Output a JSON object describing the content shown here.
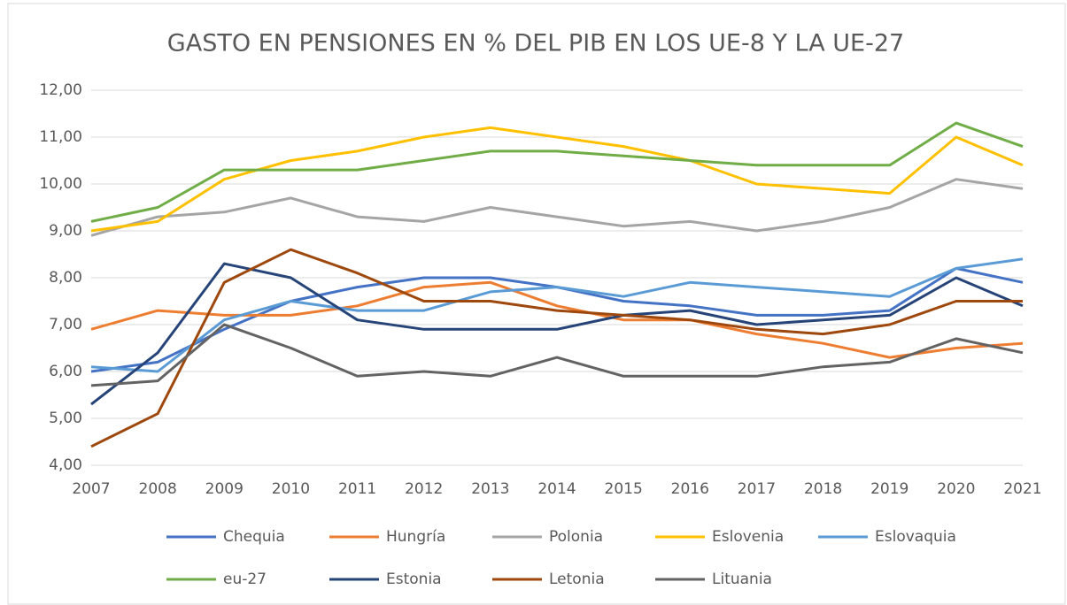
{
  "chart_data": {
    "type": "line",
    "title": "GASTO EN PENSIONES EN % DEL PIB EN LOS UE-8 Y LA UE-27",
    "categories": [
      "2007",
      "2008",
      "2009",
      "2010",
      "2011",
      "2012",
      "2013",
      "2014",
      "2015",
      "2016",
      "2017",
      "2018",
      "2019",
      "2020",
      "2021"
    ],
    "ylim": [
      4,
      12
    ],
    "yticks": [
      {
        "value": 4,
        "label": "4,00"
      },
      {
        "value": 5,
        "label": "5,00"
      },
      {
        "value": 6,
        "label": "6,00"
      },
      {
        "value": 7,
        "label": "7,00"
      },
      {
        "value": 8,
        "label": "8,00"
      },
      {
        "value": 9,
        "label": "9,00"
      },
      {
        "value": 10,
        "label": "10,00"
      },
      {
        "value": 11,
        "label": "11,00"
      },
      {
        "value": 12,
        "label": "12,00"
      }
    ],
    "grid": true,
    "legend": "bottom",
    "series": [
      {
        "name": "Chequia",
        "color": "#4472c4",
        "values": [
          6.0,
          6.2,
          6.9,
          7.5,
          7.8,
          8.0,
          8.0,
          7.8,
          7.5,
          7.4,
          7.2,
          7.2,
          7.3,
          8.2,
          7.9
        ]
      },
      {
        "name": "Hungría",
        "color": "#ed7d31",
        "values": [
          6.9,
          7.3,
          7.2,
          7.2,
          7.4,
          7.8,
          7.9,
          7.4,
          7.1,
          7.1,
          6.8,
          6.6,
          6.3,
          6.5,
          6.6
        ]
      },
      {
        "name": "Polonia",
        "color": "#a5a5a5",
        "values": [
          8.9,
          9.3,
          9.4,
          9.7,
          9.3,
          9.2,
          9.5,
          9.3,
          9.1,
          9.2,
          9.0,
          9.2,
          9.5,
          10.1,
          9.9
        ]
      },
      {
        "name": "Eslovenia",
        "color": "#ffc000",
        "values": [
          9.0,
          9.2,
          10.1,
          10.5,
          10.7,
          11.0,
          11.2,
          11.0,
          10.8,
          10.5,
          10.0,
          9.9,
          9.8,
          11.0,
          10.4
        ]
      },
      {
        "name": "Eslovaquia",
        "color": "#5b9bd5",
        "values": [
          6.1,
          6.0,
          7.1,
          7.5,
          7.3,
          7.3,
          7.7,
          7.8,
          7.6,
          7.9,
          7.8,
          7.7,
          7.6,
          8.2,
          8.4
        ]
      },
      {
        "name": "eu-27",
        "color": "#70ad47",
        "values": [
          9.2,
          9.5,
          10.3,
          10.3,
          10.3,
          10.5,
          10.7,
          10.7,
          10.6,
          10.5,
          10.4,
          10.4,
          10.4,
          11.3,
          10.8
        ]
      },
      {
        "name": "Estonia",
        "color": "#264478",
        "values": [
          5.3,
          6.4,
          8.3,
          8.0,
          7.1,
          6.9,
          6.9,
          6.9,
          7.2,
          7.3,
          7.0,
          7.1,
          7.2,
          8.0,
          7.4
        ]
      },
      {
        "name": "Letonia",
        "color": "#9e480e",
        "values": [
          4.4,
          5.1,
          7.9,
          8.6,
          8.1,
          7.5,
          7.5,
          7.3,
          7.2,
          7.1,
          6.9,
          6.8,
          7.0,
          7.5,
          7.5
        ]
      },
      {
        "name": "Lituania",
        "color": "#636363",
        "values": [
          5.7,
          5.8,
          7.0,
          6.5,
          5.9,
          6.0,
          5.9,
          6.3,
          5.9,
          5.9,
          5.9,
          6.1,
          6.2,
          6.7,
          6.4
        ]
      }
    ]
  }
}
